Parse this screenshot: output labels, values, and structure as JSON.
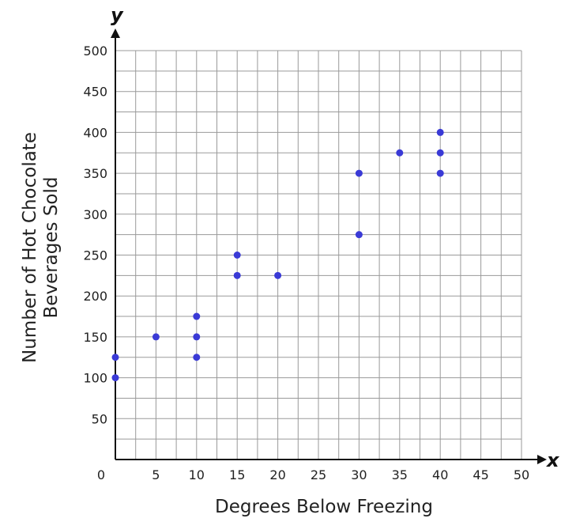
{
  "chart_data": {
    "type": "scatter",
    "title": "",
    "xlabel": "Degrees Below Freezing",
    "ylabel_lines": [
      "Number of Hot Chocolate",
      "Beverages Sold"
    ],
    "x_axis_letter": "x",
    "y_axis_letter": "y",
    "xlim": [
      0,
      50
    ],
    "ylim": [
      0,
      500
    ],
    "x_ticks": [
      "0",
      "5",
      "10",
      "15",
      "20",
      "25",
      "30",
      "35",
      "40",
      "45",
      "50"
    ],
    "y_ticks": [
      "50",
      "100",
      "150",
      "200",
      "250",
      "300",
      "350",
      "400",
      "450",
      "500"
    ],
    "grid": true,
    "grid_minor_step_x": 2.5,
    "grid_minor_step_y": 25,
    "point_color": "#3a3ad6",
    "points": [
      {
        "x": 0,
        "y": 100
      },
      {
        "x": 0,
        "y": 125
      },
      {
        "x": 5,
        "y": 150
      },
      {
        "x": 10,
        "y": 125
      },
      {
        "x": 10,
        "y": 150
      },
      {
        "x": 10,
        "y": 175
      },
      {
        "x": 15,
        "y": 225
      },
      {
        "x": 15,
        "y": 250
      },
      {
        "x": 20,
        "y": 225
      },
      {
        "x": 30,
        "y": 275
      },
      {
        "x": 30,
        "y": 350
      },
      {
        "x": 35,
        "y": 375
      },
      {
        "x": 40,
        "y": 350
      },
      {
        "x": 40,
        "y": 375
      },
      {
        "x": 40,
        "y": 400
      }
    ]
  }
}
